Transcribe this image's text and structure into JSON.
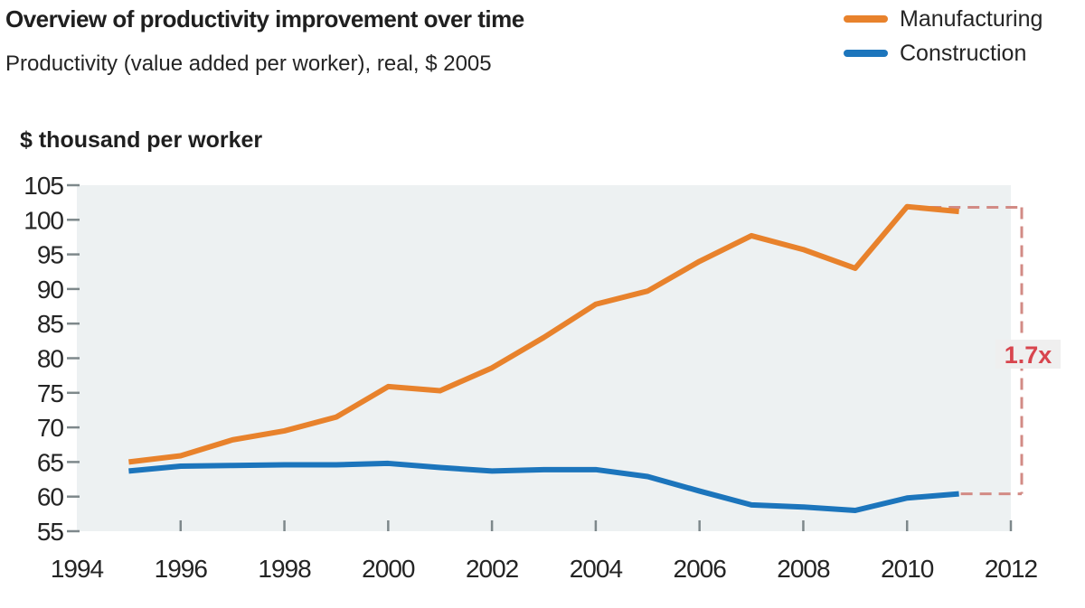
{
  "chart_data": {
    "type": "line",
    "title": "Overview of productivity improvement over time",
    "subtitle": "Productivity (value added per worker), real, $ 2005",
    "y_axis_title": "$ thousand per worker",
    "x": [
      1995,
      1996,
      1997,
      1998,
      1999,
      2000,
      2001,
      2002,
      2003,
      2004,
      2005,
      2006,
      2007,
      2008,
      2009,
      2010,
      2011
    ],
    "series": [
      {
        "name": "Manufacturing",
        "color": "#e8822c",
        "values": [
          65.0,
          65.9,
          68.2,
          69.5,
          71.5,
          75.9,
          75.3,
          78.6,
          83.0,
          87.8,
          89.7,
          94.0,
          97.7,
          95.7,
          93.0,
          101.9,
          101.2
        ]
      },
      {
        "name": "Construction",
        "color": "#1c75bc",
        "values": [
          63.7,
          64.4,
          64.5,
          64.6,
          64.6,
          64.8,
          64.2,
          63.7,
          63.9,
          63.9,
          62.9,
          60.8,
          58.8,
          58.5,
          58.0,
          59.8,
          60.4
        ]
      }
    ],
    "x_ticks": [
      1994,
      1996,
      1998,
      2000,
      2002,
      2004,
      2006,
      2008,
      2010,
      2012
    ],
    "y_ticks": [
      55,
      60,
      65,
      70,
      75,
      80,
      85,
      90,
      95,
      100,
      105
    ],
    "xlim": [
      1994,
      2012
    ],
    "ylim": [
      55,
      105
    ],
    "grid": false,
    "legend_position": "top-right",
    "plot_background": "#edf1f2",
    "tick_color": "#7e888b",
    "annotation": {
      "label": "1.7x",
      "label_color": "#d8454e",
      "label_background": "#efefef",
      "line_color": "#d28b85",
      "style": "dashed-bracket",
      "top_value": 101.8,
      "bottom_value": 60.4
    }
  }
}
